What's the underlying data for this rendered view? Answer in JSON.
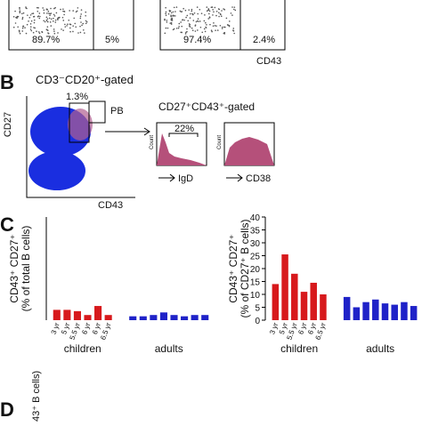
{
  "panel_a": {
    "quadrants": [
      "89.7%",
      "5%",
      "97.4%",
      "2.4%"
    ],
    "x_axis_label": "CD43"
  },
  "panel_b": {
    "label": "B",
    "gate_title": "CD3⁻CD20⁺-gated",
    "y_axis_label": "CD27",
    "x_axis_label": "CD43",
    "gate_percent": "1.3%",
    "gate_name": "PB",
    "subgate_title": "CD27⁺CD43⁺-gated",
    "histogram_percent": "22%",
    "histogram_labels": [
      "IgD",
      "CD38"
    ],
    "count_label": "Count"
  },
  "panel_c": {
    "label": "C"
  },
  "panel_d": {
    "label": "D",
    "y_axis_label": "43⁺ B cells)"
  },
  "chart_data": [
    {
      "type": "bar",
      "y_axis_label": [
        "CD43⁺ CD27⁺",
        "(% of total B cells)"
      ],
      "ylim": [
        0,
        40
      ],
      "categories": [
        "3 yr",
        "5 yr",
        "5.5 yr",
        "6 yr",
        "6 yr",
        "6.5 yr",
        null,
        null,
        null,
        null,
        null,
        null,
        null,
        null
      ],
      "series": [
        {
          "name": "children",
          "color": "#d7191c",
          "values": [
            4,
            4,
            3.5,
            2,
            5.5,
            2,
            null,
            null,
            null,
            null,
            null,
            null,
            null,
            null
          ]
        },
        {
          "name": "adults",
          "color": "#1f22c8",
          "values": [
            null,
            null,
            null,
            null,
            null,
            null,
            1.5,
            1.5,
            2,
            3,
            2,
            1.5,
            2,
            2
          ]
        }
      ]
    },
    {
      "type": "bar",
      "y_axis_label": [
        "CD43⁺ CD27⁺",
        "(% of CD27⁺ B cells)"
      ],
      "ylim": [
        0,
        40
      ],
      "yticks": [
        0,
        5,
        10,
        15,
        20,
        25,
        30,
        35,
        40
      ],
      "categories": [
        "3 yr",
        "5 yr",
        "5.5 yr",
        "6 yr",
        "6 yr",
        "6.5 yr",
        null,
        null,
        null,
        null,
        null,
        null,
        null,
        null
      ],
      "series": [
        {
          "name": "children",
          "color": "#d7191c",
          "values": [
            14,
            25.5,
            18,
            11,
            14.5,
            10,
            null,
            null,
            null,
            null,
            null,
            null,
            null,
            null
          ]
        },
        {
          "name": "adults",
          "color": "#1f22c8",
          "values": [
            null,
            null,
            null,
            null,
            null,
            null,
            9,
            5,
            7,
            8,
            6.5,
            6,
            7,
            5.5
          ]
        }
      ]
    }
  ]
}
